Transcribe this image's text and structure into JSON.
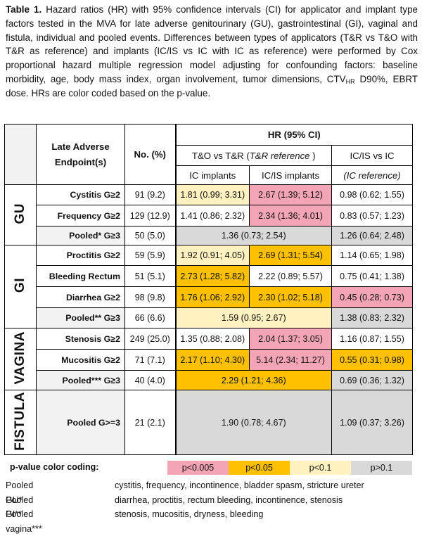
{
  "caption": {
    "label": "Table 1.",
    "text1": " Hazard ratios (HR) with 95% confidence intervals (CI) for applicator and implant type factors tested in the MVA for late adverse genitourinary (GU), gastrointestinal (GI), vaginal and fistula, individual and pooled events. Differences between types of applicators (T&R vs T&O with T&R as reference) and implants (IC/IS vs IC with IC as reference) were performed by Cox proportional hazard multiple regression model adjusting for confounding factors: baseline morbidity, age, body mass index, organ involvement, tumor dimensions, CTV",
    "sub": "HR",
    "text2": " D90%, EBRT dose. HRs are color coded based on the p-value."
  },
  "header": {
    "endpoint": "Late Adverse Endpoint(s)",
    "no": "No. (%)",
    "hr": "HR (95% CI)",
    "to_prefix": "T&O vs T&R (",
    "to_ref": "T&R reference",
    "to_suffix": " )",
    "icis": "IC/IS vs IC",
    "ic_implants": "IC implants",
    "icis_implants": "IC/IS implants",
    "ic_ref": "(IC reference)"
  },
  "groups": {
    "gu": "GU",
    "gi": "GI",
    "vagina": "VAGINA",
    "fistula": "FISTULA"
  },
  "rows": {
    "cystitis": {
      "endpoint": "Cystitis G≥2",
      "no": "91 (9.2)",
      "ic": "1.81 (0.99; 3.31)",
      "icis": "2.67 (1.39; 5.12)",
      "icis_vs_ic": "0.98 (0.62; 1.55)"
    },
    "frequency": {
      "endpoint": "Frequency G≥2",
      "no": "129 (12.9)",
      "ic": "1.41 (0.86; 2.32)",
      "icis": "2.34 (1.36; 4.01)",
      "icis_vs_ic": "0.83 (0.57; 1.23)"
    },
    "pooled_gu": {
      "endpoint": "Pooled* G≥3",
      "no": "50 (5.0)",
      "merged": "1.36 (0.73; 2.54)",
      "icis_vs_ic": "1.26 (0.64; 2.48)"
    },
    "proctitis": {
      "endpoint": "Proctitis G≥2",
      "no": "59 (5.9)",
      "ic": "1.92 (0.91; 4.05)",
      "icis": "2.69 (1.31; 5.54)",
      "icis_vs_ic": "1.14 (0.65; 1.98)"
    },
    "bleeding": {
      "endpoint": "Bleeding Rectum",
      "no": "51 (5.1)",
      "ic": "2.73 (1.28; 5.82)",
      "icis": "2.22 (0.89; 5.57)",
      "icis_vs_ic": "0.75 (0.41; 1.38)"
    },
    "diarrhea": {
      "endpoint": "Diarrhea G≥2",
      "no": "98 (9.8)",
      "ic": "1.76 (1.06; 2.92)",
      "icis": "2.30 (1.02; 5.18)",
      "icis_vs_ic": "0.45 (0.28; 0.73)"
    },
    "pooled_gi": {
      "endpoint": "Pooled** G≥3",
      "no": "66 (6.6)",
      "merged": "1.59 (0.95; 2.67)",
      "icis_vs_ic": "1.38 (0.83; 2.32)"
    },
    "stenosis": {
      "endpoint": "Stenosis G≥2",
      "no": "249 (25.0)",
      "ic": "1.35 (0.88; 2.08)",
      "icis": "2.04 (1.37; 3.05)",
      "icis_vs_ic": "1.16 (0.87; 1.55)"
    },
    "mucositis": {
      "endpoint": "Mucositis G≥2",
      "no": "71 (7.1)",
      "ic": "2.17 (1.10; 4.30)",
      "icis": "5.14 (2.34; 11.27)",
      "icis_vs_ic": "0.55 (0.31; 0.98)"
    },
    "pooled_vag": {
      "endpoint": "Pooled*** G≥3",
      "no": "40 (4.0)",
      "merged": "2.29 (1.21; 4.36)",
      "icis_vs_ic": "0.69 (0.36; 1.32)"
    },
    "pooled_fis": {
      "endpoint": "Pooled G>=3",
      "no": "21 (2.1)",
      "merged": "1.90 (0.78; 4.67)",
      "icis_vs_ic": "1.09 (0.37; 3.26)"
    }
  },
  "legend": {
    "label": "p-value color coding:",
    "items": [
      "p<0.005",
      "p<0.05",
      "p<0.1",
      "p>0.1"
    ]
  },
  "colors": {
    "p_lt_0005": "#f4a5b5",
    "p_lt_005": "#ffc000",
    "p_lt_01": "#fff2c0",
    "p_gt_01": "#d9d9d9"
  },
  "notes": [
    {
      "key": "Pooled GU*",
      "value": "cystitis, frequency, incontinence, bladder spasm, stricture ureter"
    },
    {
      "key": "Pooled GI**",
      "value": "diarrhea, proctitis, rectum bleeding, incontinence, stenosis"
    },
    {
      "key": "Pooled vagina***",
      "value": "stenosis, mucositis, dryness, bleeding"
    }
  ]
}
